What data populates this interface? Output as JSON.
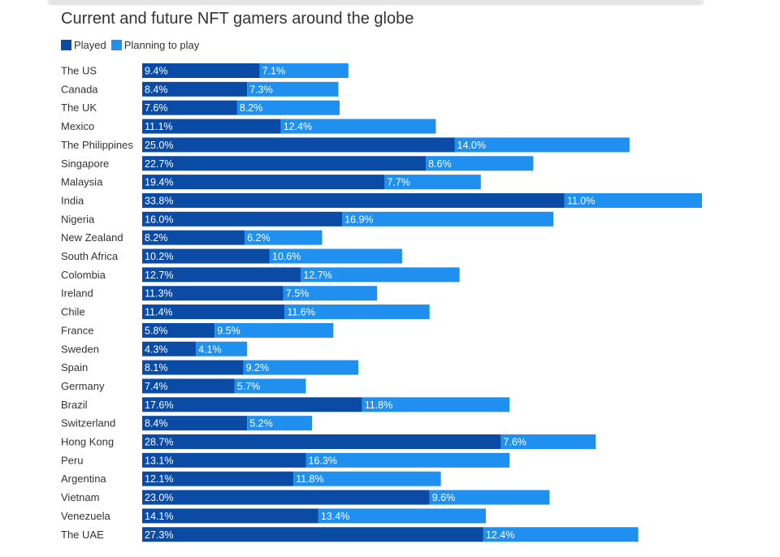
{
  "chart_data": {
    "type": "bar",
    "orientation": "horizontal",
    "stacked": true,
    "title": "Current and future NFT gamers around the globe",
    "categories": [
      "The US",
      "Canada",
      "The UK",
      "Mexico",
      "The Philippines",
      "Singapore",
      "Malaysia",
      "India",
      "Nigeria",
      "New Zealand",
      "South Africa",
      "Colombia",
      "Ireland",
      "Chile",
      "France",
      "Sweden",
      "Spain",
      "Germany",
      "Brazil",
      "Switzerland",
      "Hong Kong",
      "Peru",
      "Argentina",
      "Vietnam",
      "Venezuela",
      "The UAE"
    ],
    "series": [
      {
        "name": "Played",
        "color": "#0a4ba6",
        "values": [
          9.4,
          8.4,
          7.6,
          11.1,
          25.0,
          22.7,
          19.4,
          33.8,
          16.0,
          8.2,
          10.2,
          12.7,
          11.3,
          11.4,
          5.8,
          4.3,
          8.1,
          7.4,
          17.6,
          8.4,
          28.7,
          13.1,
          12.1,
          23.0,
          14.1,
          27.3
        ]
      },
      {
        "name": "Planning to play",
        "color": "#1f8ff0",
        "values": [
          7.1,
          7.3,
          8.2,
          12.4,
          14.0,
          8.6,
          7.7,
          11.0,
          16.9,
          6.2,
          10.6,
          12.7,
          7.5,
          11.6,
          9.5,
          4.1,
          9.2,
          5.7,
          11.8,
          5.2,
          7.6,
          16.3,
          11.8,
          9.6,
          13.4,
          12.4
        ]
      }
    ],
    "value_format": "%",
    "grid": false,
    "legend_position": "top-left"
  }
}
